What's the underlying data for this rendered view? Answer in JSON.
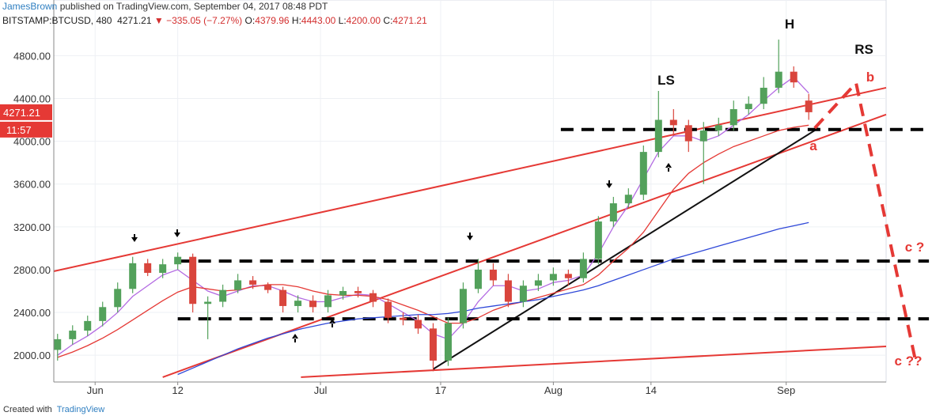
{
  "header": {
    "publisher": "JamesBrown",
    "published": " published on TradingView.com, September 04, 2017 08:48 PDT",
    "symbol": "BITSTAMP:BTCUSD, 480",
    "last": "4271.21",
    "change": "▼ −335.05 (−7.27%)",
    "ohlc_labels": [
      "O:",
      "H:",
      "L:",
      "C:"
    ],
    "ohlc_values": [
      "4379.96",
      "4443.00",
      "4200.00",
      "4271.21"
    ]
  },
  "footer": {
    "created": "Created with",
    "brand": "TradingView"
  },
  "chart_data": {
    "type": "candlestick",
    "up_color": "#53a15b",
    "down_color": "#d9453c",
    "grid": true,
    "x": [
      -5,
      -3,
      -1,
      1,
      3,
      5,
      7,
      9,
      11,
      13,
      15,
      17,
      19,
      21,
      23,
      25,
      27,
      29,
      31,
      33,
      35,
      37,
      39,
      41,
      43,
      45,
      47,
      49,
      51,
      53,
      55,
      57,
      59,
      61,
      63,
      65,
      67,
      69,
      71,
      73,
      75,
      77,
      79,
      81,
      83,
      85,
      87,
      89,
      91,
      93,
      95
    ],
    "open": [
      2050,
      2150,
      2230,
      2320,
      2450,
      2620,
      2860,
      2770,
      2850,
      2920,
      2480,
      2500,
      2610,
      2700,
      2660,
      2610,
      2460,
      2510,
      2450,
      2560,
      2600,
      2580,
      2500,
      2350,
      2330,
      2250,
      1950,
      2300,
      2620,
      2800,
      2700,
      2500,
      2650,
      2700,
      2760,
      2720,
      2900,
      3250,
      3420,
      3500,
      3900,
      4200,
      4150,
      4000,
      4100,
      4150,
      4300,
      4350,
      4500,
      4650,
      4379.96
    ],
    "high": [
      2200,
      2280,
      2370,
      2500,
      2680,
      2920,
      2900,
      2900,
      2960,
      2950,
      2550,
      2660,
      2760,
      2740,
      2680,
      2640,
      2560,
      2560,
      2610,
      2640,
      2640,
      2610,
      2530,
      2400,
      2380,
      2300,
      2350,
      2680,
      2900,
      2860,
      2760,
      2700,
      2760,
      2820,
      2800,
      2960,
      3300,
      3480,
      3560,
      3960,
      4470,
      4300,
      4200,
      4180,
      4220,
      4380,
      4420,
      4600,
      4950,
      4700,
      4443
    ],
    "low": [
      1950,
      2100,
      2180,
      2270,
      2400,
      2580,
      2740,
      2720,
      2800,
      2400,
      2150,
      2450,
      2580,
      2620,
      2580,
      2400,
      2400,
      2400,
      2400,
      2520,
      2540,
      2450,
      2300,
      2280,
      2200,
      1850,
      1900,
      2250,
      2580,
      2650,
      2450,
      2450,
      2600,
      2650,
      2650,
      2680,
      2850,
      3200,
      3380,
      3450,
      3850,
      4050,
      3900,
      3600,
      4050,
      4100,
      4250,
      4300,
      4450,
      4500,
      4200
    ],
    "close": [
      2150,
      2230,
      2320,
      2450,
      2620,
      2860,
      2770,
      2850,
      2920,
      2480,
      2500,
      2610,
      2700,
      2660,
      2610,
      2460,
      2510,
      2450,
      2560,
      2600,
      2580,
      2500,
      2350,
      2330,
      2250,
      1950,
      2300,
      2620,
      2800,
      2700,
      2500,
      2650,
      2700,
      2760,
      2720,
      2900,
      3250,
      3420,
      3500,
      3900,
      4200,
      4150,
      4000,
      4100,
      4150,
      4300,
      4350,
      4500,
      4650,
      4550,
      4271.21
    ],
    "overlays": [
      {
        "color": "#b36ae2",
        "values": [
          2000,
          2100,
          2180,
          2280,
          2400,
          2550,
          2650,
          2750,
          2800,
          2700,
          2600,
          2550,
          2600,
          2650,
          2650,
          2600,
          2540,
          2500,
          2500,
          2540,
          2570,
          2560,
          2480,
          2400,
          2320,
          2200,
          2150,
          2300,
          2500,
          2650,
          2650,
          2600,
          2620,
          2680,
          2700,
          2750,
          2950,
          3200,
          3400,
          3650,
          3900,
          4050,
          4050,
          4000,
          4050,
          4150,
          4250,
          4380,
          4500,
          4600,
          4450
        ]
      },
      {
        "color": "#e53935",
        "values": [
          1980,
          2030,
          2090,
          2160,
          2240,
          2330,
          2420,
          2510,
          2590,
          2640,
          2620,
          2600,
          2610,
          2640,
          2660,
          2660,
          2640,
          2600,
          2570,
          2560,
          2560,
          2550,
          2520,
          2470,
          2420,
          2360,
          2300,
          2300,
          2350,
          2420,
          2470,
          2500,
          2540,
          2580,
          2620,
          2660,
          2750,
          2880,
          3000,
          3150,
          3350,
          3550,
          3700,
          3800,
          3880,
          3950,
          4000,
          4050,
          4100,
          4130,
          4150
        ]
      },
      {
        "color": "#2f48d8",
        "values": [
          null,
          null,
          null,
          null,
          null,
          null,
          null,
          null,
          1820,
          1880,
          1940,
          2000,
          2060,
          2110,
          2160,
          2200,
          2240,
          2270,
          2300,
          2320,
          2340,
          2350,
          2360,
          2370,
          2380,
          2380,
          2390,
          2410,
          2440,
          2460,
          2480,
          2500,
          2520,
          2550,
          2580,
          2610,
          2650,
          2700,
          2750,
          2800,
          2850,
          2900,
          2940,
          2980,
          3020,
          3060,
          3100,
          3140,
          3180,
          3210,
          3240
        ]
      }
    ],
    "drawings": [
      {
        "color": "#e53935",
        "dashed": false,
        "x": [
          -5.5,
          105.3
        ],
        "y": [
          2785,
          4500
        ]
      },
      {
        "color": "#e53935",
        "dashed": false,
        "x": [
          9,
          105.3
        ],
        "y": [
          1795,
          4250
        ]
      },
      {
        "color": "#e53935",
        "dashed": false,
        "x": [
          27.4,
          105.3
        ],
        "y": [
          1795,
          2083
        ]
      },
      {
        "color": "#111111",
        "dashed": false,
        "x": [
          45,
          96.3
        ],
        "y": [
          1870,
          4123
        ]
      },
      {
        "color": "#000000",
        "dashed": true,
        "x": [
          62,
          111
        ],
        "y": [
          4110,
          4110
        ]
      },
      {
        "color": "#000000",
        "dashed": true,
        "x": [
          11,
          111
        ],
        "y": [
          2880,
          2880
        ]
      },
      {
        "color": "#000000",
        "dashed": true,
        "x": [
          11,
          111
        ],
        "y": [
          2340,
          2340
        ]
      },
      {
        "color": "#e53935",
        "dashed": true,
        "x": [
          95.8,
          101.3,
          109.3
        ],
        "y": [
          4123,
          4544,
          1920
        ]
      }
    ],
    "annotations": [
      "H",
      "RS",
      "LS",
      "b",
      "a",
      "c ?",
      "c ??"
    ],
    "countdown": "11:57",
    "xlim": [
      -5.5,
      105.3
    ],
    "ylim": [
      1750,
      5320
    ],
    "xticks": [
      {
        "value": 0,
        "label": "Jun"
      },
      {
        "value": 11,
        "label": "12"
      },
      {
        "value": 30,
        "label": "Jul"
      },
      {
        "value": 46,
        "label": "17"
      },
      {
        "value": 61,
        "label": "Aug"
      },
      {
        "value": 74,
        "label": "14"
      },
      {
        "value": 92,
        "label": "Sep"
      }
    ],
    "yticks": [
      {
        "value": 2000,
        "label": "2000.00"
      },
      {
        "value": 2400,
        "label": "2400.00"
      },
      {
        "value": 2800,
        "label": "2800.00"
      },
      {
        "value": 3200,
        "label": "3200.00"
      },
      {
        "value": 3600,
        "label": "3600.00"
      },
      {
        "value": 4000,
        "label": "4000.00"
      },
      {
        "value": 4400,
        "label": "4400.00"
      },
      {
        "value": 4800,
        "label": "4800.00"
      }
    ]
  }
}
